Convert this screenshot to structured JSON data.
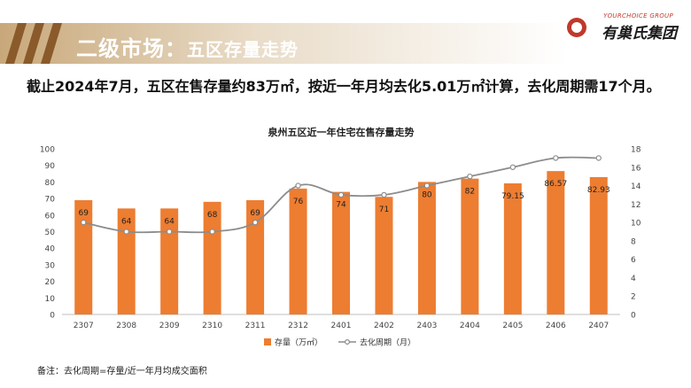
{
  "header": {
    "title": "二级市场：",
    "subtitle": "五区存量走势"
  },
  "logo": {
    "english": "YOURCHOICE GROUP",
    "chinese": "有巢氏集团"
  },
  "headline": "截止2024年7月，五区在售存量约83万㎡，按近一年月均去化5.01万㎡计算，去化周期需17个月。",
  "footnote": "备注：去化周期=存量/近一年月均成交面积",
  "colors": {
    "bar": "#ed7d31",
    "line": "#8c8c8c",
    "header_band": "#c8a87a"
  },
  "chart_data": {
    "type": "bar",
    "title": "泉州五区近一年住宅在售存量走势",
    "categories": [
      "2307",
      "2308",
      "2309",
      "2310",
      "2311",
      "2312",
      "2401",
      "2402",
      "2403",
      "2404",
      "2405",
      "2406",
      "2407"
    ],
    "series": [
      {
        "name": "存量（万㎡）",
        "type": "bar",
        "axis": "left",
        "values": [
          69,
          64,
          64,
          68,
          69,
          76,
          74,
          71,
          80,
          82,
          79.15,
          86.57,
          82.93
        ],
        "labels": [
          "69",
          "64",
          "64",
          "68",
          "69",
          "76",
          "74",
          "71",
          "80",
          "82",
          "79.15",
          "86.57",
          "82.93"
        ]
      },
      {
        "name": "去化周期（月）",
        "type": "line",
        "axis": "right",
        "values": [
          10,
          9,
          9,
          9,
          10,
          14,
          13,
          13,
          14,
          15,
          16,
          17,
          17
        ]
      }
    ],
    "y_left": {
      "min": 0,
      "max": 100,
      "ticks": [
        0,
        10,
        20,
        30,
        40,
        50,
        60,
        70,
        80,
        90,
        100
      ]
    },
    "y_right": {
      "min": 0,
      "max": 18,
      "ticks": [
        0,
        2,
        4,
        6,
        8,
        10,
        12,
        14,
        16,
        18
      ]
    },
    "legend_position": "bottom",
    "grid": false
  }
}
